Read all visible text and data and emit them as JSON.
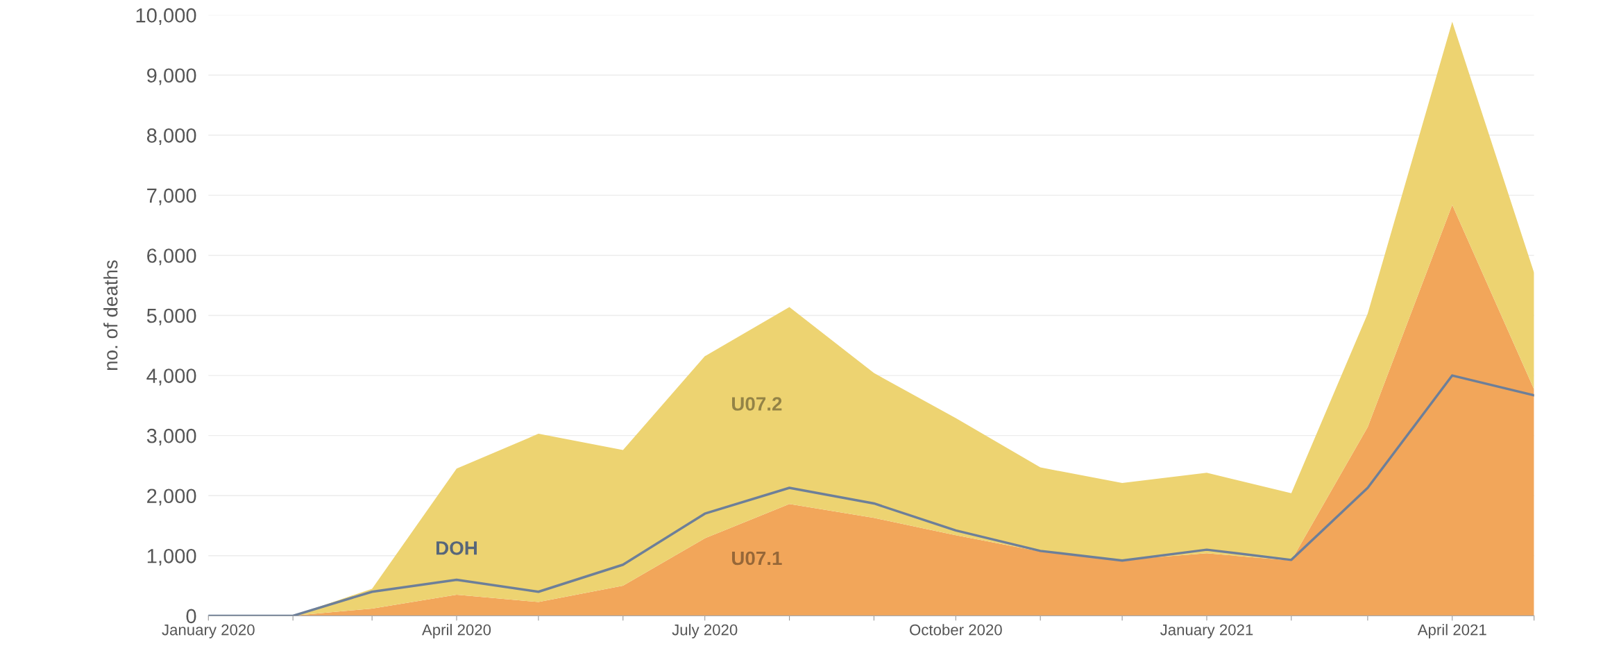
{
  "chart_data": {
    "type": "area",
    "ylabel": "no. of deaths",
    "stacked": true,
    "grid": "y",
    "legend": false,
    "x": [
      "2020-01",
      "2020-02",
      "2020-03",
      "2020-04",
      "2020-05",
      "2020-06",
      "2020-07",
      "2020-08",
      "2020-09",
      "2020-10",
      "2020-11",
      "2020-12",
      "2021-01",
      "2021-02",
      "2021-03",
      "2021-04",
      "2021-05"
    ],
    "series": [
      {
        "name": "U07.1",
        "color": "#f2a65a",
        "values": [
          0,
          0,
          120,
          350,
          230,
          500,
          1290,
          1860,
          1630,
          1340,
          1070,
          930,
          1040,
          920,
          3140,
          6840,
          3770
        ]
      },
      {
        "name": "U07.2",
        "color": "#edd371",
        "values": [
          0,
          0,
          330,
          2100,
          2800,
          2260,
          3030,
          3280,
          2410,
          1950,
          1400,
          1280,
          1340,
          1120,
          1890,
          3050,
          1940
        ]
      },
      {
        "name": "DOH",
        "type": "line",
        "color": "#6d7f99",
        "values": [
          0,
          0,
          400,
          600,
          400,
          850,
          1700,
          2130,
          1870,
          1420,
          1080,
          920,
          1100,
          930,
          2130,
          4000,
          3670
        ]
      }
    ],
    "xlim": [
      "2020-01",
      "2021-05"
    ],
    "xticks": [
      {
        "value": "2020-01",
        "label": "January 2020"
      },
      {
        "value": "2020-02",
        "label": null
      },
      {
        "value": "2020-03",
        "label": null
      },
      {
        "value": "2020-04",
        "label": "April 2020"
      },
      {
        "value": "2020-05",
        "label": null
      },
      {
        "value": "2020-06",
        "label": null
      },
      {
        "value": "2020-07",
        "label": "July 2020"
      },
      {
        "value": "2020-08",
        "label": null
      },
      {
        "value": "2020-09",
        "label": null
      },
      {
        "value": "2020-10",
        "label": "October 2020"
      },
      {
        "value": "2020-11",
        "label": null
      },
      {
        "value": "2020-12",
        "label": null
      },
      {
        "value": "2021-01",
        "label": "January 2021"
      },
      {
        "value": "2021-02",
        "label": null
      },
      {
        "value": "2021-03",
        "label": null
      },
      {
        "value": "2021-04",
        "label": "April 2021"
      },
      {
        "value": "2021-05",
        "label": null
      }
    ],
    "ylim": [
      0,
      10000
    ],
    "yticks": [
      {
        "value": 0,
        "label": "0"
      },
      {
        "value": 1000,
        "label": "1,000"
      },
      {
        "value": 2000,
        "label": "2,000"
      },
      {
        "value": 3000,
        "label": "3,000"
      },
      {
        "value": 4000,
        "label": "4,000"
      },
      {
        "value": 5000,
        "label": "5,000"
      },
      {
        "value": 6000,
        "label": "6,000"
      },
      {
        "value": 7000,
        "label": "7,000"
      },
      {
        "value": 8000,
        "label": "8,000"
      },
      {
        "value": 9000,
        "label": "9,000"
      },
      {
        "value": 10000,
        "label": "10,000"
      }
    ]
  }
}
